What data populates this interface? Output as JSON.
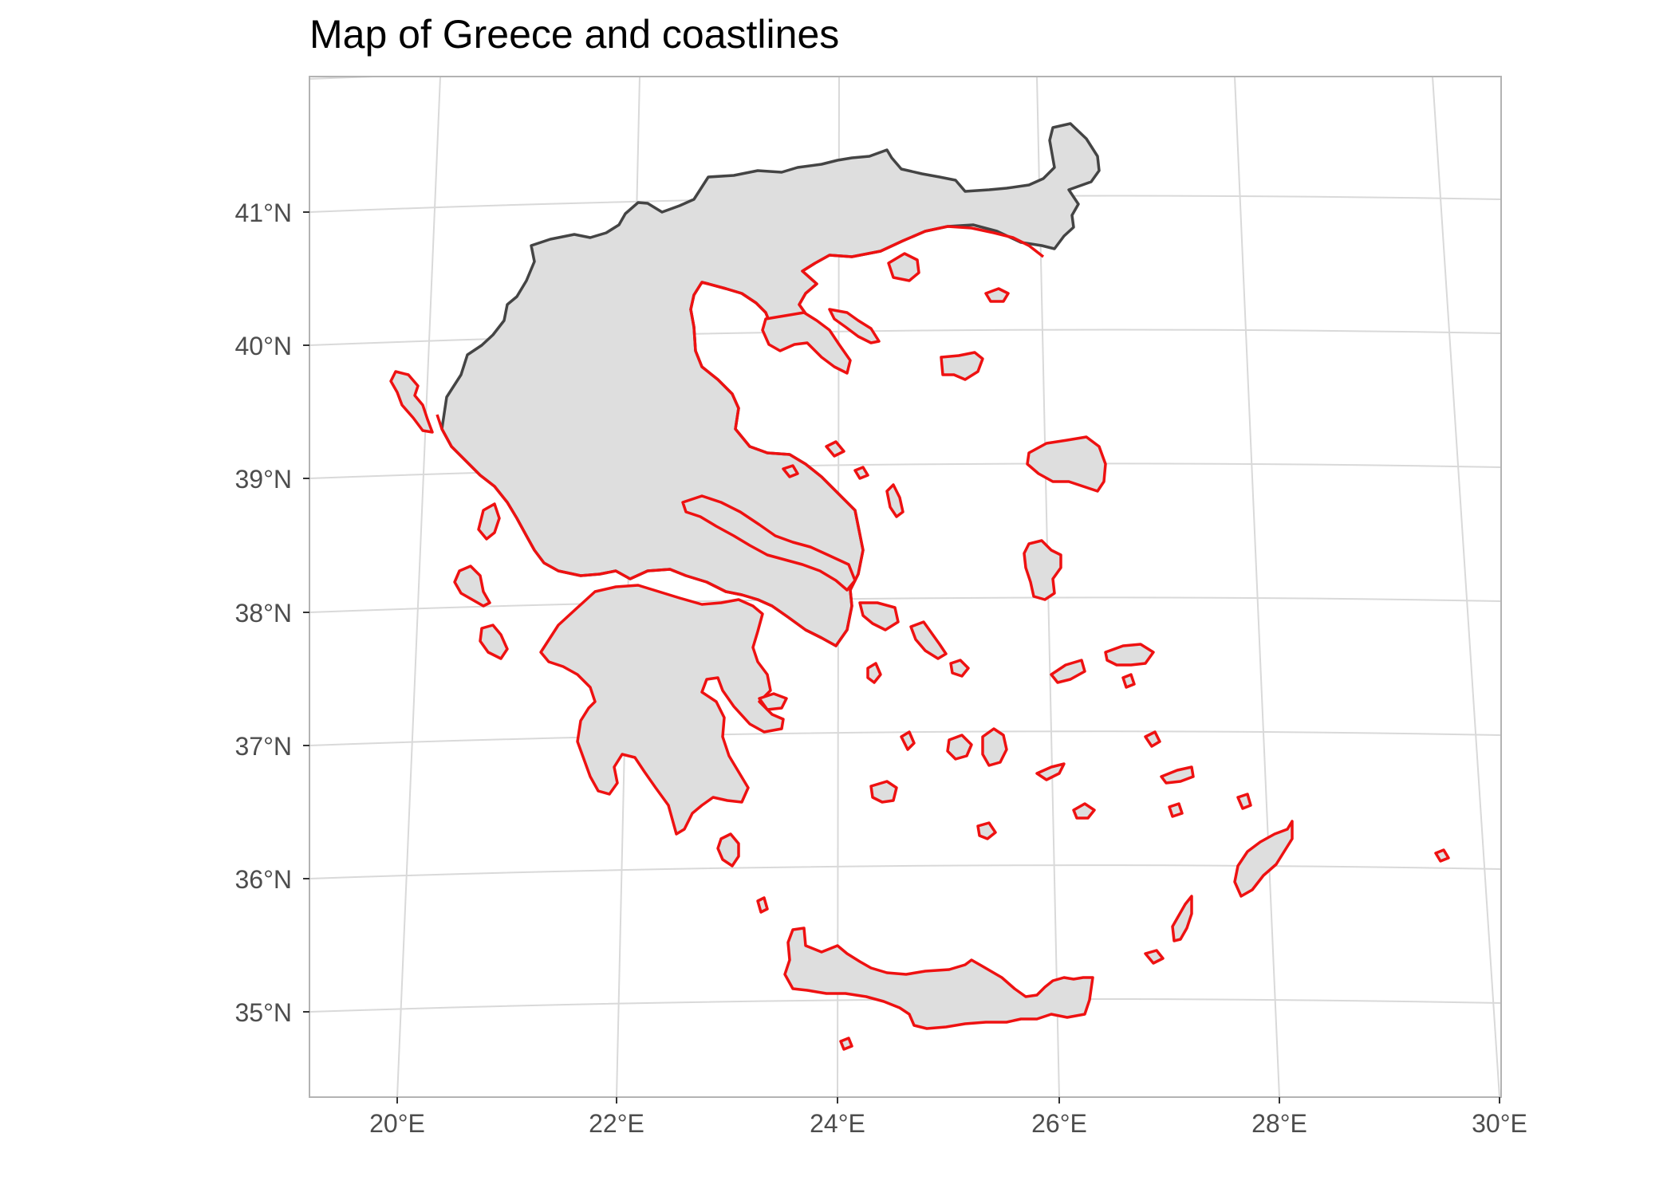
{
  "title": "Map of Greece and coastlines",
  "colors": {
    "land_fill": "#dedede",
    "country_border": "#444444",
    "coastline": "#ee1111",
    "graticule": "#d9d9d9",
    "panel_border": "#b3b3b3",
    "tick_text": "#4d4d4d"
  },
  "axes": {
    "x_ticks": [
      "20°E",
      "22°E",
      "24°E",
      "26°E",
      "28°E",
      "30°E"
    ],
    "y_ticks": [
      "41°N",
      "40°N",
      "39°N",
      "38°N",
      "37°N",
      "36°N",
      "35°N"
    ],
    "x_range": [
      19.2,
      30.0
    ],
    "y_range": [
      34.4,
      42.0
    ],
    "grid": true
  },
  "layers": [
    {
      "name": "country",
      "style": "grey fill, dark grey border"
    },
    {
      "name": "coastlines",
      "style": "red outline"
    }
  ]
}
